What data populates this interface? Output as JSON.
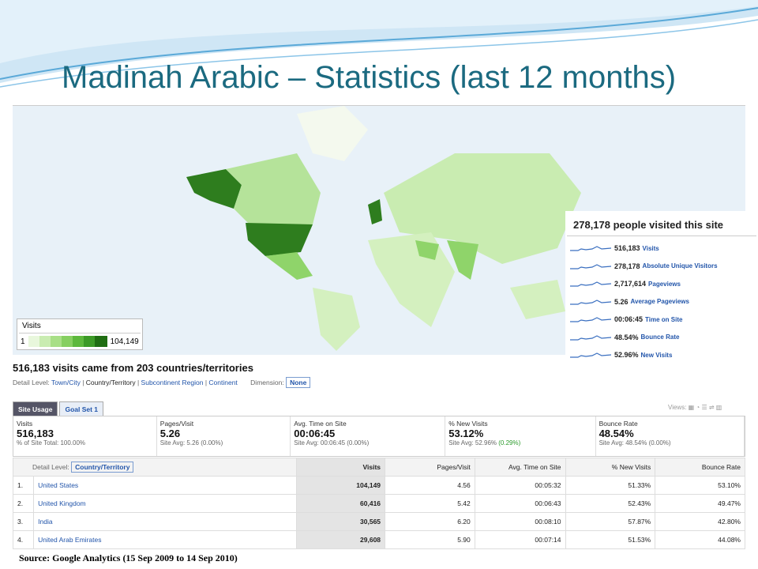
{
  "title": "Madinah Arabic – Statistics (last 12 months)",
  "map": {
    "legend_title": "Visits",
    "legend_min": "1",
    "legend_max": "104,149"
  },
  "summary": {
    "heading": "278,178 people visited this site",
    "items": [
      {
        "value": "516,183",
        "label": "Visits"
      },
      {
        "value": "278,178",
        "label": "Absolute Unique Visitors"
      },
      {
        "value": "2,717,614",
        "label": "Pageviews"
      },
      {
        "value": "5.26",
        "label": "Average Pageviews"
      },
      {
        "value": "00:06:45",
        "label": "Time on Site"
      },
      {
        "value": "48.54%",
        "label": "Bounce Rate"
      },
      {
        "value": "52.96%",
        "label": "New Visits"
      }
    ]
  },
  "countries_heading": "516,183 visits came from 203 countries/territories",
  "detail_level": {
    "label": "Detail Level:",
    "options": [
      "Town/City",
      "Country/Territory",
      "Subcontinent Region",
      "Continent"
    ],
    "dimension_label": "Dimension:",
    "dimension_value": "None"
  },
  "tabs": [
    "Site Usage",
    "Goal Set 1"
  ],
  "views_label": "Views:",
  "metrics": [
    {
      "name": "Visits",
      "value": "516,183",
      "sub": "% of Site Total: 100.00%"
    },
    {
      "name": "Pages/Visit",
      "value": "5.26",
      "sub": "Site Avg: 5.26 (0.00%)"
    },
    {
      "name": "Avg. Time on Site",
      "value": "00:06:45",
      "sub": "Site Avg: 00:06:45 (0.00%)"
    },
    {
      "name": "% New Visits",
      "value": "53.12%",
      "sub": "Site Avg: 52.96%",
      "delta": "(0.29%)"
    },
    {
      "name": "Bounce Rate",
      "value": "48.54%",
      "sub": "Site Avg: 48.54% (0.00%)"
    }
  ],
  "table": {
    "detail_label": "Detail Level:",
    "detail_value": "Country/Territory",
    "columns": [
      "Visits",
      "Pages/Visit",
      "Avg. Time on Site",
      "% New Visits",
      "Bounce Rate"
    ],
    "rows": [
      [
        "1.",
        "United States",
        "104,149",
        "4.56",
        "00:05:32",
        "51.33%",
        "53.10%"
      ],
      [
        "2.",
        "United Kingdom",
        "60,416",
        "5.42",
        "00:06:43",
        "52.43%",
        "49.47%"
      ],
      [
        "3.",
        "India",
        "30,565",
        "6.20",
        "00:08:10",
        "57.87%",
        "42.80%"
      ],
      [
        "4.",
        "United Arab Emirates",
        "29,608",
        "5.90",
        "00:07:14",
        "51.53%",
        "44.08%"
      ]
    ]
  },
  "source": "Source: Google Analytics (15 Sep 2009 to 14 Sep 2010)"
}
